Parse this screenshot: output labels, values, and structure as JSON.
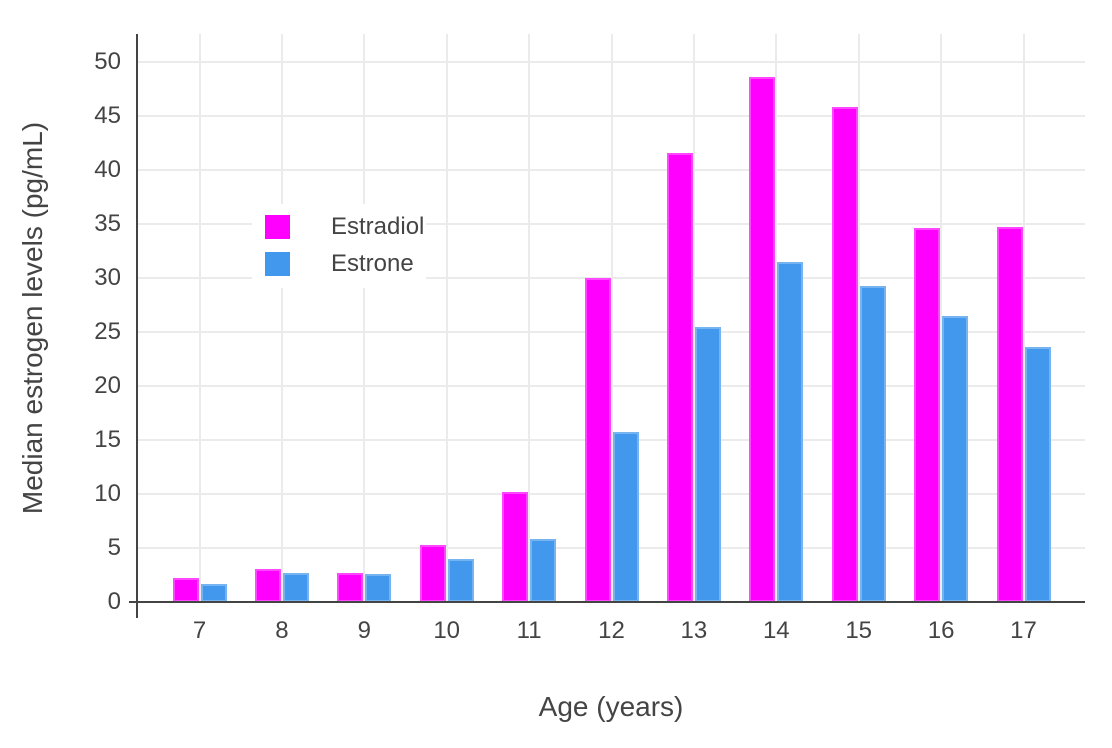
{
  "chart_data": {
    "type": "bar",
    "title": "",
    "xlabel": "Age (years)",
    "ylabel": "Median estrogen levels (pg/mL)",
    "categories": [
      "7",
      "8",
      "9",
      "10",
      "11",
      "12",
      "13",
      "14",
      "15",
      "16",
      "17"
    ],
    "series": [
      {
        "name": "Estradiol",
        "color": "#FF00FF",
        "values": [
          2.2,
          3.1,
          2.7,
          5.3,
          10.2,
          30.0,
          41.6,
          48.6,
          45.8,
          34.6,
          34.7
        ]
      },
      {
        "name": "Estrone",
        "color": "#4298EC",
        "values": [
          1.7,
          2.7,
          2.6,
          4.0,
          5.8,
          15.7,
          25.5,
          31.5,
          29.3,
          26.5,
          23.6
        ]
      }
    ],
    "ylim": [
      0,
      50
    ],
    "yticks": [
      0,
      5,
      10,
      15,
      20,
      25,
      30,
      35,
      40,
      45,
      50
    ],
    "grid": true,
    "legend_position": "inside-top-left",
    "colors": {
      "text": "#444444",
      "gridline": "#EBEBEB",
      "axis_line": "#444444",
      "background": "#FFFFFF"
    }
  }
}
